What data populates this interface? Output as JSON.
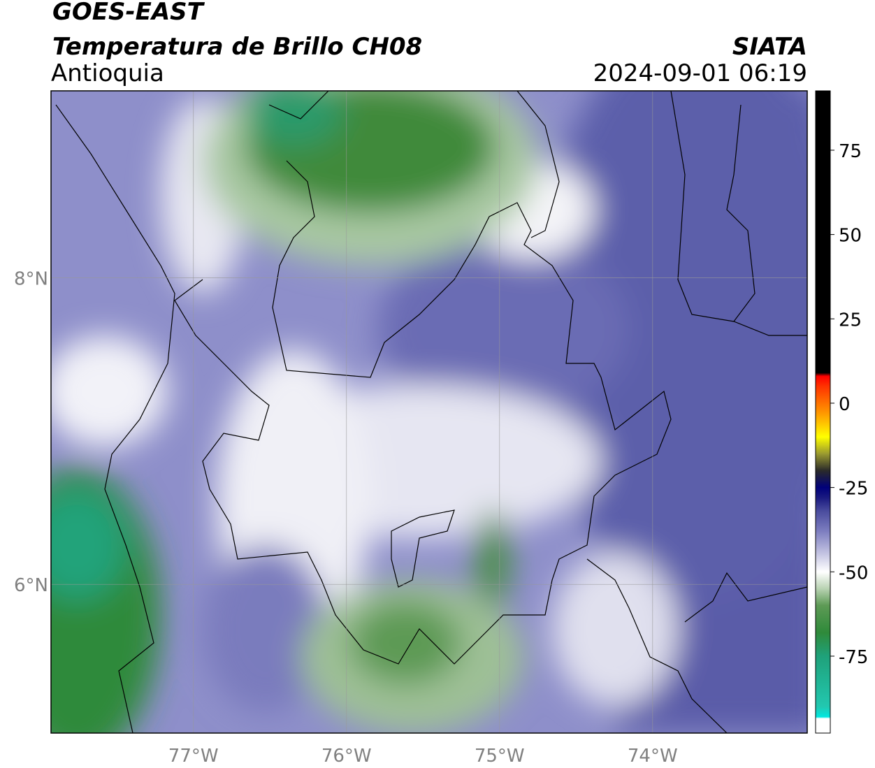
{
  "header": {
    "title": "GOES-EAST",
    "subtitle": "Temperatura de Brillo CH08",
    "source": "SIATA",
    "region": "Antioquia",
    "datetime": "2024-09-01 06:19"
  },
  "map": {
    "xlim": [
      -77.93,
      -72.99
    ],
    "ylim": [
      5.03,
      9.22
    ],
    "xticks": [
      {
        "value": -77,
        "label": "77°W"
      },
      {
        "value": -76,
        "label": "76°W"
      },
      {
        "value": -75,
        "label": "75°W"
      },
      {
        "value": -74,
        "label": "74°W"
      }
    ],
    "yticks": [
      {
        "value": 8,
        "label": "8°N"
      },
      {
        "value": 6,
        "label": "6°N"
      }
    ],
    "grid": true
  },
  "colorbar": {
    "lim": [
      -97.8,
      92.6
    ],
    "ticks": [
      75,
      50,
      25,
      0,
      -25,
      -50,
      -75
    ],
    "stops": [
      {
        "value": -97.8,
        "color": "#ffffff"
      },
      {
        "value": -93.5,
        "color": "#ffffff"
      },
      {
        "value": -93,
        "color": "#00e8e0"
      },
      {
        "value": -90,
        "color": "#22c8b0"
      },
      {
        "value": -75,
        "color": "#1fa17a"
      },
      {
        "value": -68,
        "color": "#2f8a3a"
      },
      {
        "value": -60,
        "color": "#5d9a55"
      },
      {
        "value": -55,
        "color": "#b8d2b2"
      },
      {
        "value": -50,
        "color": "#ffffff"
      },
      {
        "value": -45,
        "color": "#c8c8e4"
      },
      {
        "value": -38,
        "color": "#7d7ec0"
      },
      {
        "value": -32,
        "color": "#4a4c9e"
      },
      {
        "value": -28,
        "color": "#1a1a80"
      },
      {
        "value": -25,
        "color": "#00007a"
      },
      {
        "value": -20,
        "color": "#2a2a2a"
      },
      {
        "value": -15,
        "color": "#9a9a30"
      },
      {
        "value": -10,
        "color": "#ffff00"
      },
      {
        "value": -3,
        "color": "#ff9900"
      },
      {
        "value": 5,
        "color": "#ff3300"
      },
      {
        "value": 8,
        "color": "#ff0000"
      },
      {
        "value": 9,
        "color": "#000000"
      },
      {
        "value": 92.6,
        "color": "#000000"
      }
    ]
  }
}
